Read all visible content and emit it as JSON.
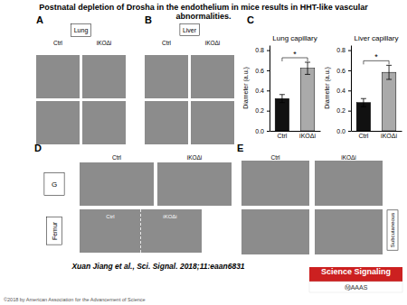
{
  "title": [
    "Postnatal depletion of Drosha in the endothelium in mice results in HHT-like vascular",
    "abnormalities."
  ],
  "annotations": [
    "A",
    "Lung",
    "Ctrl",
    "iKOΔi",
    "B",
    "Liver",
    "Ctrl",
    "iKOΔi",
    "C",
    "D",
    "Ctrl",
    "iKOΔi",
    "G",
    "Ctrl",
    "iKOΔi",
    "Femur",
    "E",
    "Ctrl",
    "iKOΔi",
    "Subcutaneous",
    "Xuan Jiang et al., Sci. Signal. 2018;11:eaan6831",
    "©2018 by American Association for the Advancement of Science",
    "Science Signaling",
    "ⓂAAAS"
  ],
  "chart_data": [
    {
      "type": "bar",
      "title": "Lung capillary",
      "ylabel": "Diameter (a.u.)",
      "categories": [
        "Ctrl",
        "iKOΔi"
      ],
      "values": [
        0.32,
        0.62
      ],
      "errors": [
        0.04,
        0.06
      ],
      "colors": [
        "#111111",
        "#aaaaaa"
      ],
      "ylim": [
        0,
        0.85
      ],
      "yticks": [
        {
          "value": 0,
          "label": "0.0"
        },
        0.2,
        0.4,
        0.6,
        0.8
      ],
      "grid": false,
      "annotations": [
        "*"
      ]
    },
    {
      "type": "bar",
      "title": "Liver capillary",
      "ylabel": "Diameter (a.u.)",
      "categories": [
        "Ctrl",
        "iKOΔi"
      ],
      "values": [
        0.28,
        0.58
      ],
      "errors": [
        0.04,
        0.07
      ],
      "colors": [
        "#111111",
        "#aaaaaa"
      ],
      "ylim": [
        0,
        0.85
      ],
      "yticks": [
        {
          "value": 0,
          "label": "0.0"
        },
        0.2,
        0.4,
        0.6,
        0.8
      ],
      "grid": false,
      "annotations": [
        "*"
      ]
    }
  ]
}
